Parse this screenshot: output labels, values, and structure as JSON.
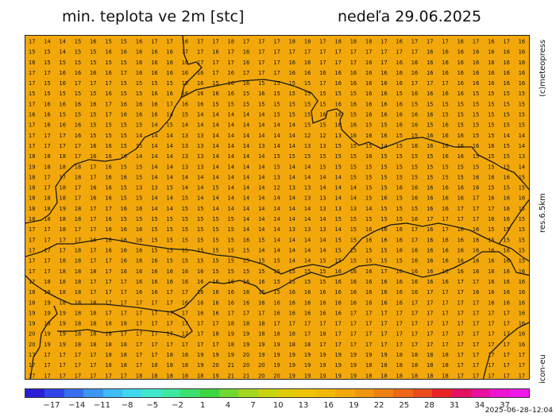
{
  "header": {
    "title": "min. teplota ve 2m [stc]",
    "date": "nedeľa 29.06.2025"
  },
  "side_labels": {
    "credit": "(c)meteopress",
    "resolution": "res.6.5km",
    "model": "icon-eu"
  },
  "timestamp": "2025–06–28–12:04",
  "map": {
    "fill_color": "#f2a80a",
    "grid_cols": 33,
    "grid_rows": 33,
    "rows": [
      "17 14 14 15 16 15 15 16 17 17 16 17 17 18 17 17 17 18 18 17 18 18 18 17 16 17 17 17 16 17 16 17 16",
      "15 15 14 15 15 16 16 16 16 16 17 17 16 17 16 17 17 17 17 17 17 17 17 17 17 17 16 16 16 16 16 16 16",
      "16 15 15 15 15 15 15 16 16 16 16 17 17 17 16 17 17 16 16 17 17 17 16 17 16 16 16 16 16 16 16 16 16",
      "17 17 16 16 16 16 17 16 16 16 16 16 17 16 17 17 17 16 16 16 16 16 16 16 16 16 16 16 16 16 16 16 16",
      "17 15 16 17 17 17 15 15 15 15 15 16 15 16 16 15 15 15 15 17 16 16 16 16 16 17 17 17 16 16 16 16 16",
      "15 15 15 15 15 16 15 15 16 16 16 16 16 16 15 16 15 15 15 15 15 15 16 16 15 16 16 16 16 15 15 15 15",
      "17 16 16 16 16 17 16 16 16 17 16 16 15 15 15 15 15 15 15 15 16 16 16 16 16 15 15 15 15 15 15 15 15",
      "16 16 15 15 15 17 16 16 16 14 15 14 14 14 14 14 15 15 15 16 16 15 16 16 16 16 16 15 15 15 15 15 15",
      "17 16 16 16 15 15 15 15 14 15 14 14 14 14 14 14 14 14 15 15 16 16 15 15 16 16 15 16 15 15 15 15 15",
      "17 17 17 16 15 15 15 14 14 14 13 13 14 14 14 14 14 14 12 12 13 16 16 16 15 15 16 16 16 15 15 14 14",
      "17 17 17 17 16 16 15 15 14 14 13 13 14 14 14 13 14 14 13 13 15 15 15 14 15 16 16 16 16 16 16 15 14",
      "18 18 18 17 16 16 16 14 14 14 13 13 14 14 14 14 15 15 15 15 15 15 16 15 15 15 15 16 16 15 15 15 13",
      "19 18 18 18 17 16 15 15 14 14 13 13 14 14 14 14 15 14 14 15 15 15 15 15 15 15 15 15 15 15 15 15 14",
      "18 17 17 18 17 16 16 15 14 14 14 14 14 14 14 14 13 14 14 14 14 15 15 15 15 15 15 15 15 16 16 16 15",
      "18 17 18 17 16 16 15 13 13 15 14 14 15 14 14 14 12 13 13 14 14 14 15 15 16 16 16 16 16 16 15 15 15",
      "18 18 18 17 16 16 15 15 14 14 15 14 14 14 14 14 14 14 13 13 14 14 15 16 15 16 16 16 16 17 16 16 16",
      "18 18 19 18 17 17 16 16 14 14 15 15 14 14 14 14 14 14 14 13 13 13 14 15 15 15 16 16 17 17 17 16 15",
      "18 18 18 18 17 16 15 15 15 15 15 15 15 15 14 14 14 14 14 14 15 15 15 15 15 16 17 17 17 17 16 16 15",
      "17 17 18 17 17 16 16 16 15 15 15 15 15 15 14 14 14 13 13 13 14 15 16 16 16 17 16 17 16 16 15 15 15",
      "17 17 17 17 16 16 16 16 15 15 15 15 15 15 16 15 14 14 14 14 15 15 16 16 16 17 16 16 16 16 15 15 15",
      "17 17 17 18 17 16 16 16 15 15 15 15 15 15 15 14 14 14 14 14 15 15 15 15 16 16 16 16 16 16 16 16 15",
      "17 17 18 18 17 17 16 16 16 15 15 15 15 15 15 15 15 14 14 15 15 15 15 15 15 16 16 16 16 16 16 16 15",
      "17 17 18 18 18 17 16 16 16 16 16 16 15 15 15 15 15 15 15 15 16 16 16 17 16 16 16 16 16 16 16 16 16",
      "17 18 18 18 17 17 17 16 16 16 16 16 16 16 16 16 15 15 15 15 16 16 16 16 16 16 16 16 17 17 16 16 16",
      "18 18 18 18 17 17 17 16 16 17 17 16 16 16 16 15 15 16 16 16 16 16 16 16 16 16 17 17 17 16 16 16 16",
      "18 19 18 18 18 17 17 17 17 17 16 16 16 16 16 16 16 16 16 16 16 16 16 16 16 17 17 17 17 17 16 16 16",
      "19 19 19 18 18 17 17 17 17 17 17 16 16 17 17 17 16 16 16 16 16 17 17 17 17 17 17 17 17 17 17 17 16",
      "19 19 19 18 18 18 18 17 17 17 17 17 17 18 18 18 17 17 17 17 17 17 17 17 17 17 17 17 17 17 17 17 16",
      "20 19 19 18 18 18 17 17 17 17 17 17 18 19 19 18 18 18 17 18 17 17 17 17 17 17 17 17 17 17 17 17 16",
      "20 19 19 18 18 18 18 17 17 17 17 17 17 18 19 19 19 18 18 17 17 17 17 17 17 17 17 17 17 17 17 17 16",
      "17 17 17 17 17 18 18 17 17 18 18 19 19 19 20 19 19 19 19 19 19 19 19 19 18 18 18 18 17 17 17 17 17",
      "17 17 17 17 17 18 18 17 18 18 18 19 20 21 20 20 19 19 19 19 19 19 18 18 18 18 18 18 17 17 17 17 17",
      "17 17 17 17 17 17 17 18 18 18 18 18 19 21 21 20 20 19 19 19 19 19 18 18 18 18 18 18 17 17 17 17 17"
    ]
  },
  "colorbar": {
    "colors": [
      "#2a1fd8",
      "#2f45e8",
      "#3670f0",
      "#3b96f4",
      "#3fbbf6",
      "#40d8ef",
      "#40e8d0",
      "#3fe8a0",
      "#3ee070",
      "#3ed640",
      "#70d830",
      "#a2d820",
      "#c8d410",
      "#e0cc08",
      "#eec404",
      "#f2b806",
      "#f2a80a",
      "#f0960e",
      "#ee8012",
      "#ec6818",
      "#ea4c1e",
      "#e82428",
      "#e61060",
      "#e8109c",
      "#ec14d0",
      "#f018e8"
    ],
    "tick_labels": [
      "−17",
      "−14",
      "−11",
      "−8",
      "−5",
      "−2",
      "1",
      "4",
      "7",
      "10",
      "13",
      "16",
      "19",
      "22",
      "25",
      "28",
      "31",
      "34",
      "37"
    ]
  }
}
